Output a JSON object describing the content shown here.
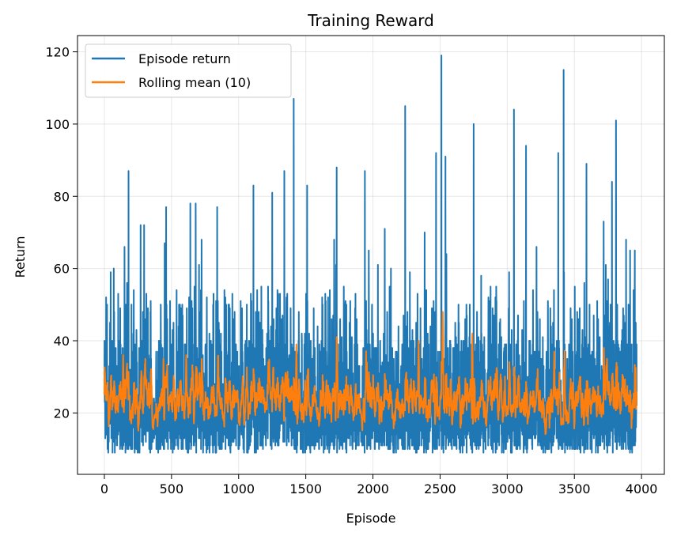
{
  "chart_data": {
    "type": "line",
    "title": "Training Reward",
    "xlabel": "Episode",
    "ylabel": "Return",
    "xlim": [
      -200,
      4170
    ],
    "ylim": [
      3,
      124.5
    ],
    "xticks": [
      0,
      500,
      1000,
      1500,
      2000,
      2500,
      3000,
      3500,
      4000
    ],
    "yticks": [
      20,
      40,
      60,
      80,
      100,
      120
    ],
    "grid": true,
    "legend": "top-left",
    "episodes": 3965,
    "series": [
      {
        "name": "Episode return",
        "color": "#1f77b4",
        "min": 8,
        "typical_range": [
          10,
          45
        ],
        "notable_peaks": [
          {
            "x": 20,
            "y": 50
          },
          {
            "x": 70,
            "y": 60
          },
          {
            "x": 150,
            "y": 66
          },
          {
            "x": 180,
            "y": 87
          },
          {
            "x": 270,
            "y": 72
          },
          {
            "x": 460,
            "y": 77
          },
          {
            "x": 640,
            "y": 78
          },
          {
            "x": 680,
            "y": 78
          },
          {
            "x": 840,
            "y": 77
          },
          {
            "x": 1110,
            "y": 83
          },
          {
            "x": 1250,
            "y": 81
          },
          {
            "x": 1340,
            "y": 87
          },
          {
            "x": 1410,
            "y": 107
          },
          {
            "x": 1510,
            "y": 83
          },
          {
            "x": 1730,
            "y": 88
          },
          {
            "x": 1940,
            "y": 87
          },
          {
            "x": 2240,
            "y": 105
          },
          {
            "x": 2470,
            "y": 92
          },
          {
            "x": 2510,
            "y": 119
          },
          {
            "x": 2540,
            "y": 91
          },
          {
            "x": 2750,
            "y": 100
          },
          {
            "x": 3050,
            "y": 104
          },
          {
            "x": 3140,
            "y": 94
          },
          {
            "x": 3380,
            "y": 92
          },
          {
            "x": 3420,
            "y": 115
          },
          {
            "x": 3590,
            "y": 89
          },
          {
            "x": 3780,
            "y": 84
          },
          {
            "x": 3810,
            "y": 101
          },
          {
            "x": 3950,
            "y": 65
          }
        ]
      },
      {
        "name": "Rolling mean (10)",
        "color": "#ff7f0e",
        "window": 10,
        "typical_range": [
          18,
          32
        ],
        "notable_peaks": [
          {
            "x": 140,
            "y": 36
          },
          {
            "x": 440,
            "y": 35
          },
          {
            "x": 610,
            "y": 36
          },
          {
            "x": 1430,
            "y": 39
          },
          {
            "x": 2340,
            "y": 40
          },
          {
            "x": 2520,
            "y": 48
          },
          {
            "x": 2740,
            "y": 42
          },
          {
            "x": 3350,
            "y": 37
          },
          {
            "x": 3720,
            "y": 38
          }
        ]
      }
    ]
  }
}
